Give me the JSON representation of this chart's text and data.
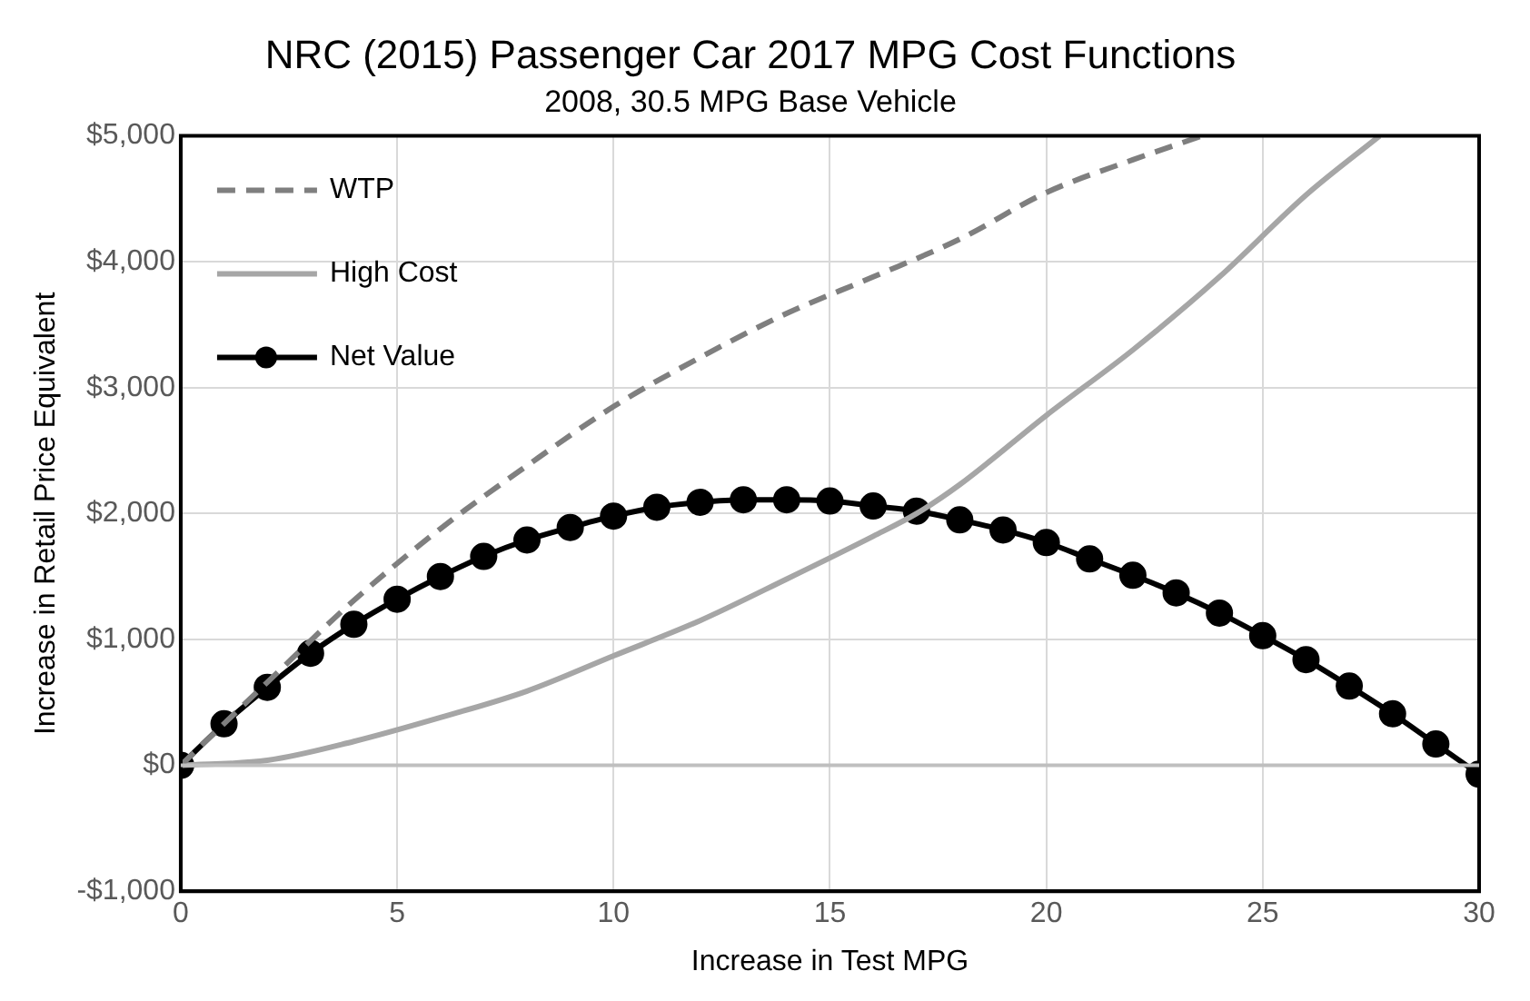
{
  "chart_data": {
    "type": "line",
    "title": "NRC (2015) Passenger Car 2017 MPG Cost Functions",
    "subtitle": "2008, 30.5 MPG Base Vehicle",
    "xlabel": "Increase in Test MPG",
    "ylabel": "Increase in Retail Price Equivalent",
    "xlim": [
      0,
      30
    ],
    "xticks": [
      0,
      5,
      10,
      15,
      20,
      25,
      30
    ],
    "ylim": [
      -1000,
      5000
    ],
    "yticks": [
      {
        "value": -1000,
        "label": "-$1,000"
      },
      {
        "value": 0,
        "label": "$0"
      },
      {
        "value": 1000,
        "label": "$1,000"
      },
      {
        "value": 2000,
        "label": "$2,000"
      },
      {
        "value": 3000,
        "label": "$3,000"
      },
      {
        "value": 4000,
        "label": "$4,000"
      },
      {
        "value": 5000,
        "label": "$5,000"
      }
    ],
    "grid": true,
    "legend": "top left",
    "series": [
      {
        "name": "WTP",
        "color": "#7f7f7f",
        "line_style": "dashed",
        "marker": "none",
        "x": [
          0,
          2,
          4,
          6,
          8,
          10,
          12,
          14,
          16,
          18,
          20,
          22,
          23.6
        ],
        "values": [
          0,
          660,
          1310,
          1880,
          2380,
          2850,
          3240,
          3590,
          3880,
          4180,
          4550,
          4810,
          5000
        ]
      },
      {
        "name": "High Cost",
        "color": "#a6a6a6",
        "line_style": "solid",
        "marker": "none",
        "x": [
          0,
          2,
          4,
          6,
          8,
          10,
          12,
          14,
          16,
          17,
          18,
          20,
          22,
          24,
          26,
          27.7
        ],
        "values": [
          0,
          40,
          190,
          380,
          590,
          870,
          1150,
          1480,
          1820,
          2000,
          2230,
          2780,
          3300,
          3880,
          4530,
          5000
        ]
      },
      {
        "name": "Net Value",
        "color": "#000000",
        "line_style": "solid",
        "marker": "circle",
        "x": [
          0,
          1,
          2,
          3,
          4,
          5,
          6,
          7,
          8,
          9,
          10,
          11,
          12,
          13,
          14,
          15,
          16,
          17,
          18,
          19,
          20,
          21,
          22,
          23,
          24,
          25,
          26,
          27,
          28,
          29,
          30
        ],
        "values": [
          0,
          330,
          620,
          890,
          1120,
          1320,
          1500,
          1660,
          1790,
          1890,
          1980,
          2050,
          2090,
          2110,
          2110,
          2100,
          2060,
          2020,
          1950,
          1870,
          1770,
          1640,
          1510,
          1370,
          1210,
          1030,
          840,
          630,
          410,
          170,
          -70
        ]
      }
    ]
  }
}
